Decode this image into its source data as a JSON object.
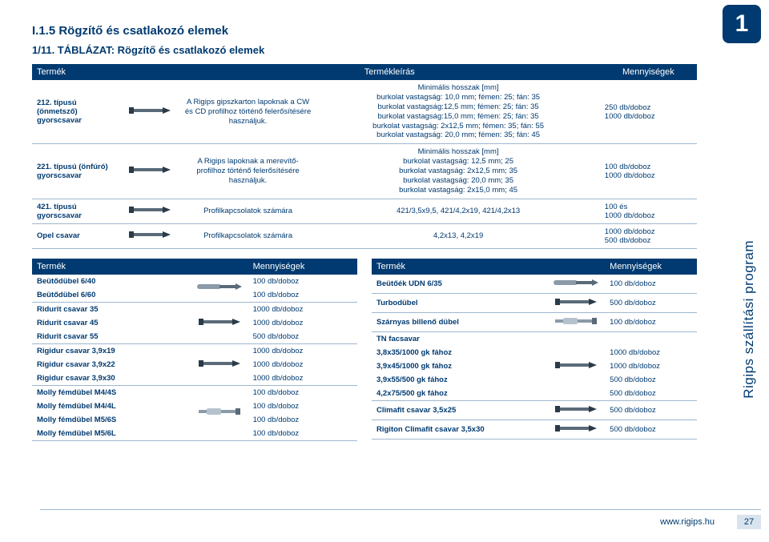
{
  "page": {
    "chapter_number": "1",
    "section_title": "I.1.5 Rögzítő és csatlakozó elemek",
    "table_caption": "1/11. TÁBLÁZAT: Rögzítő és csatlakozó elemek",
    "side_label": "Rigips szállítási program",
    "footer_url": "www.rigips.hu",
    "page_number": "27"
  },
  "t1": {
    "headers": {
      "product": "Termék",
      "desc": "Termékleírás",
      "qty": "Mennyiségek"
    },
    "rows": [
      {
        "name": "212. típusú (önmetsző) gyorscsavar",
        "desc": "A Rigips gipszkarton lapoknak a CW és CD profilhoz történő felerősítésére használjuk.",
        "min": "Minimális hosszak [mm]\nburkolat vastagság: 10,0 mm; fémen: 25; fán: 35\nburkolat vastagság:12,5 mm; fémen: 25; fán: 35\nburkolat vastagság:15,0 mm; fémen: 25; fán: 35\nburkolat vastagság: 2x12,5 mm; fémen: 35; fán: 55\nburkolat vastagság: 20,0 mm; fémen: 35; fán: 45",
        "qty": "250 db/doboz\n1000 db/doboz"
      },
      {
        "name": "221. típusú (önfúró) gyorscsavar",
        "desc": "A Rigips lapoknak a merevítő-profilhoz történő felerősítésére használjuk.",
        "min": "Minimális hosszak [mm]\nburkolat vastagság: 12,5 mm; 25\nburkolat vastagság: 2x12,5 mm; 35\nburkolat vastagság: 20,0 mm; 35\nburkolat vastagság: 2x15,0 mm; 45",
        "qty": "100 db/doboz\n1000 db/doboz"
      },
      {
        "name": "421. típusú gyorscsavar",
        "desc": "Profilkapcsolatok számára",
        "min": "421/3,5x9,5, 421/4,2x19, 421/4,2x13",
        "qty": "100 és\n1000 db/doboz"
      },
      {
        "name": "Opel csavar",
        "desc": "Profilkapcsolatok számára",
        "min": "4,2x13, 4,2x19",
        "qty": "1000 db/doboz\n500 db/doboz"
      }
    ]
  },
  "t2L": {
    "headers": {
      "product": "Termék",
      "qty": "Mennyiségek"
    },
    "groups": [
      {
        "img": "plug",
        "rows": [
          {
            "n": "Beütődübel 6/40",
            "q": "100 db/doboz"
          },
          {
            "n": "Beütődübel 6/60",
            "q": "100 db/doboz"
          }
        ]
      },
      {
        "img": "screw",
        "rows": [
          {
            "n": "Ridurit csavar 35",
            "q": "1000 db/doboz"
          },
          {
            "n": "Ridurit csavar 45",
            "q": "1000 db/doboz"
          },
          {
            "n": "Ridurit csavar 55",
            "q": "500 db/doboz"
          }
        ]
      },
      {
        "img": "screw",
        "rows": [
          {
            "n": "Rigidur csavar 3,9x19",
            "q": "1000 db/doboz"
          },
          {
            "n": "Rigidur csavar 3,9x22",
            "q": "1000 db/doboz"
          },
          {
            "n": "Rigidur csavar 3,9x30",
            "q": "1000 db/doboz"
          }
        ]
      },
      {
        "img": "anchor",
        "rows": [
          {
            "n": "Molly fémdübel M4/4S",
            "q": "100 db/doboz"
          },
          {
            "n": "Molly fémdübel M4/4L",
            "q": "100 db/doboz"
          },
          {
            "n": "Molly fémdübel M5/6S",
            "q": "100 db/doboz"
          },
          {
            "n": "Molly fémdübel M5/6L",
            "q": "100 db/doboz"
          }
        ]
      }
    ]
  },
  "t2R": {
    "headers": {
      "product": "Termék",
      "qty": "Mennyiségek"
    },
    "groups": [
      {
        "img": "plug",
        "rows": [
          {
            "n": "Beütőék UDN 6/35",
            "q": "100 db/doboz"
          }
        ]
      },
      {
        "img": "screw",
        "rows": [
          {
            "n": "Turbodübel",
            "q": "500 db/doboz"
          }
        ]
      },
      {
        "img": "anchor",
        "rows": [
          {
            "n": "Szárnyas billenő dübel",
            "q": "100 db/doboz"
          }
        ]
      },
      {
        "img": "screw",
        "rows": [
          {
            "n": "TN facsavar",
            "q": ""
          },
          {
            "n": "3,8x35/1000 gk fához",
            "q": "1000 db/doboz"
          },
          {
            "n": "3,9x45/1000 gk fához",
            "q": "1000 db/doboz"
          },
          {
            "n": "3,9x55/500 gk fához",
            "q": "500 db/doboz"
          },
          {
            "n": "4,2x75/500 gk fához",
            "q": "500 db/doboz"
          }
        ]
      },
      {
        "img": "screw",
        "rows": [
          {
            "n": "Climafit csavar 3,5x25",
            "q": "500 db/doboz"
          }
        ]
      },
      {
        "img": "screw",
        "rows": [
          {
            "n": "Rigiton Climafit csavar 3,5x30",
            "q": "500 db/doboz"
          }
        ]
      }
    ]
  },
  "colors": {
    "brand": "#003a70",
    "rule": "#9fb7cf",
    "bg": "#ffffff",
    "footer_box": "#d9e3ee"
  },
  "icons": {
    "screw": "screw-icon",
    "plug": "plug-icon",
    "anchor": "anchor-icon"
  }
}
